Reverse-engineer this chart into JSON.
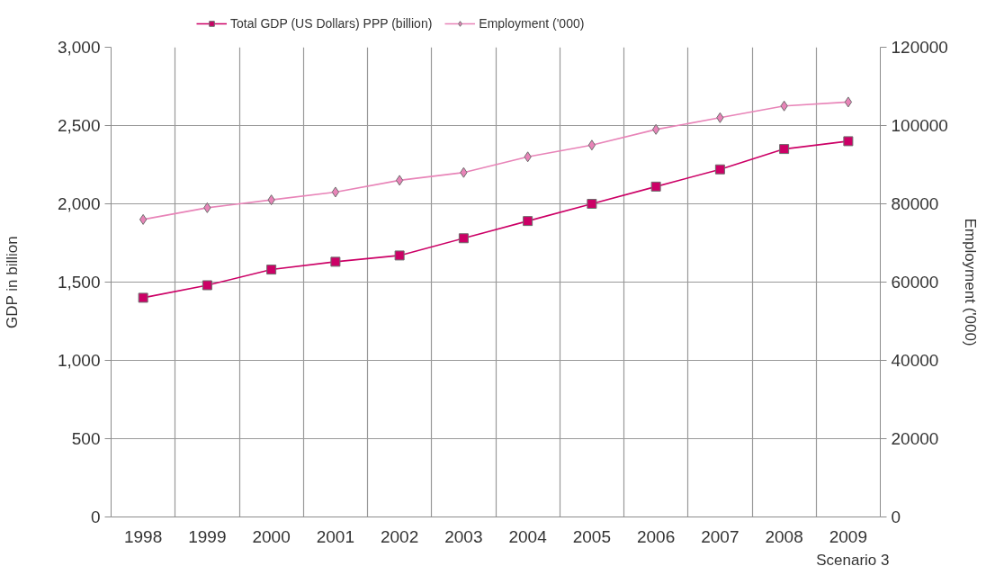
{
  "chart_data": {
    "type": "line",
    "categories": [
      "1998",
      "1999",
      "2000",
      "2001",
      "2002",
      "2003",
      "2004",
      "2005",
      "2006",
      "2007",
      "2008",
      "2009"
    ],
    "ylabel": "GDP in billion",
    "y2label": "Employment ('000)",
    "ylim": [
      0,
      3000
    ],
    "yticks": [
      0,
      500,
      {
        "value": 1000,
        "label": "1,000"
      },
      {
        "value": 1500,
        "label": "1,500"
      },
      {
        "value": 2000,
        "label": "2,000"
      },
      {
        "value": 2500,
        "label": "2,500"
      },
      {
        "value": 3000,
        "label": "3,000"
      }
    ],
    "y2lim": [
      0,
      120000
    ],
    "y2ticks": [
      0,
      20000,
      40000,
      60000,
      80000,
      100000,
      120000
    ],
    "series": [
      {
        "name": "Total GDP (US Dollars) PPP (billion)",
        "color": "#cc0066",
        "marker": "square",
        "values": [
          1400,
          1480,
          1580,
          1630,
          1670,
          1780,
          1890,
          2000,
          2110,
          2220,
          2350,
          2400
        ]
      },
      {
        "name": "Employment ('000)",
        "color": "#e884b8",
        "marker": "diamond",
        "axis": "y2",
        "values": [
          76000,
          79000,
          81000,
          83000,
          86000,
          88000,
          92000,
          95000,
          99000,
          102000,
          105000,
          106000
        ]
      }
    ],
    "grid": true,
    "legend": "top",
    "line_style": "solid",
    "annotations": [
      "Scenario 3"
    ]
  }
}
